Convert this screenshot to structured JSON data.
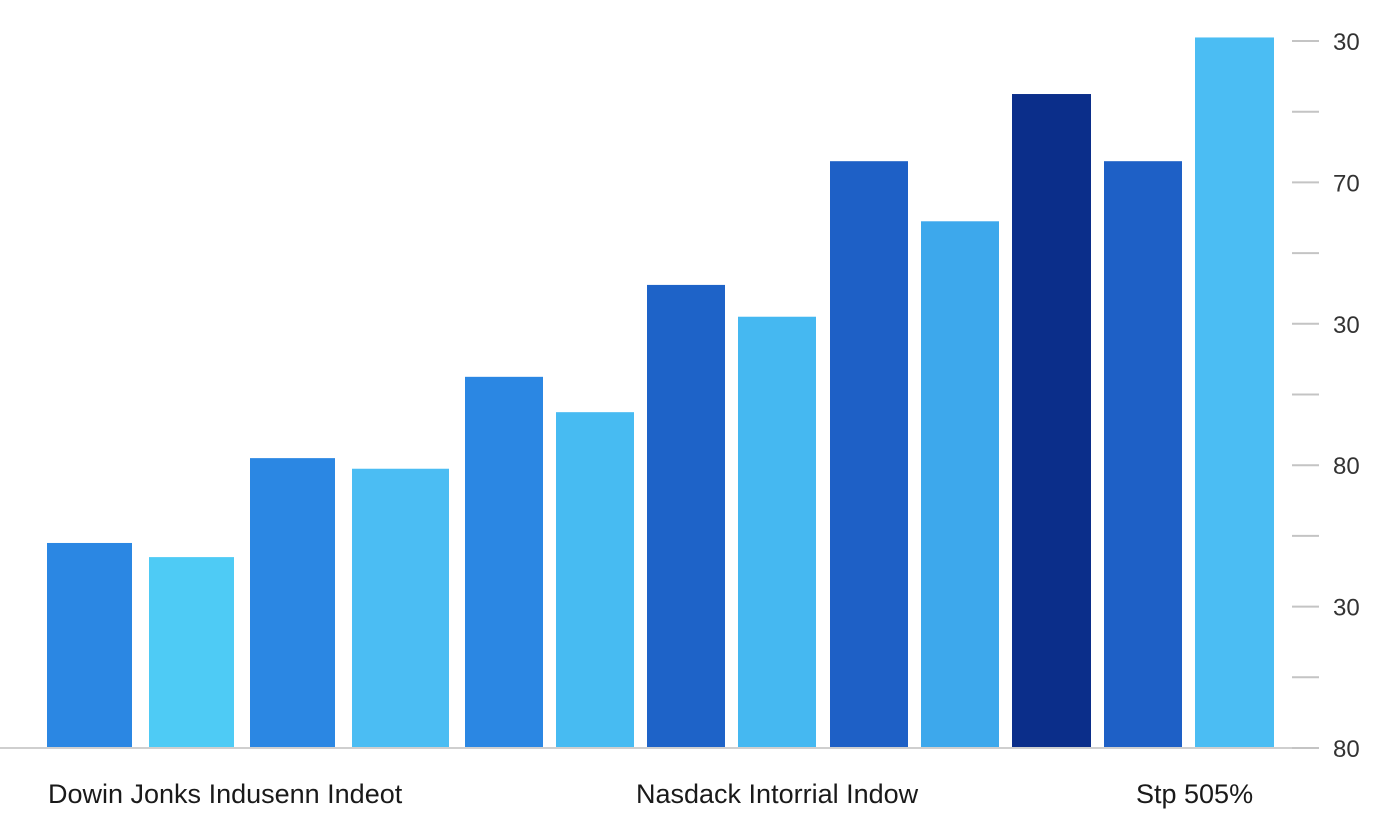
{
  "chart_data": {
    "type": "bar",
    "title": "",
    "xlabel": "",
    "ylabel": "",
    "y_axis_position": "right",
    "ylim": [
      0,
      100
    ],
    "grid": false,
    "legend": "none",
    "y_tick_labels": [
      "30",
      "",
      "70",
      "",
      "30",
      "",
      "80",
      "",
      "30",
      "",
      "80"
    ],
    "category_labels": [
      "Dowin Jonks Indusenn Indeot",
      "Nasdack Intorrial Indow",
      "Stp 505%"
    ],
    "values": [
      29,
      27,
      41,
      39.5,
      52.5,
      47.5,
      65.5,
      61,
      83,
      74.5,
      92.5,
      83,
      100.5
    ],
    "colors": [
      "#2b87e3",
      "#4ecbf5",
      "#2b87e3",
      "#4bbdf3",
      "#2b87e3",
      "#47bbf2",
      "#1e63c8",
      "#45b8f1",
      "#1e60c6",
      "#3da8ec",
      "#0b2e8a",
      "#1e60c6",
      "#4bbdf3"
    ]
  }
}
